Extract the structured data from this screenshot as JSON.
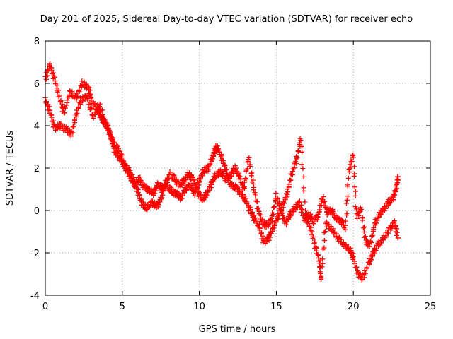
{
  "chart_data": {
    "type": "scatter",
    "title": "Day 201 of 2025, Sidereal Day-to-day VTEC variation (SDTVAR) for receiver echo",
    "xlabel": "GPS time / hours",
    "ylabel": "SDTVAR / TECUs",
    "xlim": [
      0,
      25
    ],
    "ylim": [
      -4,
      8
    ],
    "x_ticks": [
      "0",
      "5",
      "10",
      "15",
      "20",
      "25"
    ],
    "y_ticks": [
      "-4",
      "-2",
      "0",
      "2",
      "4",
      "6",
      "8"
    ],
    "grid": true,
    "marker": "plus",
    "series": [
      {
        "name": "main",
        "color": "#ff0000",
        "points": [
          [
            0.0,
            6.2
          ],
          [
            0.3,
            6.9
          ],
          [
            0.6,
            6.2
          ],
          [
            0.9,
            5.4
          ],
          [
            1.2,
            4.6
          ],
          [
            1.6,
            5.6
          ],
          [
            2.0,
            5.3
          ],
          [
            2.4,
            6.0
          ],
          [
            2.8,
            5.8
          ],
          [
            3.0,
            5.2
          ],
          [
            3.4,
            4.7
          ],
          [
            3.7,
            4.3
          ],
          [
            4.0,
            4.0
          ],
          [
            4.3,
            3.4
          ],
          [
            4.6,
            3.0
          ],
          [
            4.9,
            2.7
          ],
          [
            5.2,
            2.0
          ],
          [
            5.5,
            1.6
          ],
          [
            5.8,
            1.2
          ],
          [
            6.1,
            1.5
          ],
          [
            6.4,
            1.1
          ],
          [
            6.7,
            1.0
          ],
          [
            7.0,
            0.8
          ],
          [
            7.3,
            1.2
          ],
          [
            7.6,
            1.1
          ],
          [
            7.9,
            1.2
          ],
          [
            8.2,
            0.9
          ],
          [
            8.5,
            0.8
          ],
          [
            8.8,
            0.6
          ],
          [
            9.1,
            1.0
          ],
          [
            9.4,
            1.2
          ],
          [
            9.7,
            0.8
          ],
          [
            10.0,
            1.4
          ],
          [
            10.3,
            1.9
          ],
          [
            10.6,
            2.0
          ],
          [
            10.9,
            2.6
          ],
          [
            11.1,
            3.0
          ],
          [
            11.4,
            2.6
          ],
          [
            11.7,
            2.0
          ],
          [
            12.0,
            1.2
          ],
          [
            12.4,
            1.1
          ],
          [
            12.7,
            0.8
          ],
          [
            13.0,
            0.5
          ],
          [
            13.3,
            0.0
          ],
          [
            13.6,
            -0.4
          ],
          [
            13.9,
            -0.8
          ],
          [
            14.2,
            -1.5
          ],
          [
            14.5,
            -1.3
          ],
          [
            14.8,
            -0.8
          ],
          [
            15.1,
            -0.3
          ],
          [
            15.4,
            0.2
          ],
          [
            15.7,
            0.8
          ],
          [
            16.0,
            1.7
          ],
          [
            16.3,
            2.4
          ],
          [
            16.6,
            3.4
          ],
          [
            16.9,
            -0.3
          ],
          [
            17.2,
            -0.8
          ],
          [
            17.5,
            -1.6
          ],
          [
            17.8,
            -2.4
          ],
          [
            17.9,
            -3.3
          ],
          [
            18.2,
            -0.6
          ],
          [
            18.6,
            -0.9
          ],
          [
            19.0,
            -1.3
          ],
          [
            19.4,
            -1.6
          ],
          [
            19.8,
            -1.9
          ],
          [
            20.0,
            -2.2
          ],
          [
            20.3,
            -3.0
          ],
          [
            20.6,
            -3.2
          ],
          [
            21.0,
            -2.5
          ],
          [
            21.3,
            -2.0
          ],
          [
            21.6,
            -1.6
          ],
          [
            22.0,
            -1.3
          ],
          [
            22.4,
            -0.8
          ],
          [
            22.7,
            -0.6
          ],
          [
            22.9,
            -1.3
          ]
        ]
      },
      {
        "name": "secondary",
        "color": "#ff0000",
        "points": [
          [
            0.0,
            5.2
          ],
          [
            0.3,
            4.7
          ],
          [
            0.6,
            3.9
          ],
          [
            1.0,
            4.0
          ],
          [
            1.4,
            3.8
          ],
          [
            1.7,
            3.6
          ],
          [
            2.0,
            4.5
          ],
          [
            2.3,
            5.2
          ],
          [
            2.7,
            5.4
          ],
          [
            3.1,
            4.4
          ],
          [
            3.5,
            5.0
          ],
          [
            3.9,
            4.1
          ],
          [
            4.2,
            3.7
          ],
          [
            4.5,
            2.8
          ],
          [
            4.8,
            2.5
          ],
          [
            5.1,
            2.2
          ],
          [
            5.4,
            1.9
          ],
          [
            5.7,
            1.5
          ],
          [
            6.0,
            0.9
          ],
          [
            6.3,
            0.3
          ],
          [
            6.6,
            0.1
          ],
          [
            6.9,
            0.4
          ],
          [
            7.2,
            0.2
          ],
          [
            7.5,
            0.5
          ],
          [
            7.8,
            1.3
          ],
          [
            8.1,
            1.7
          ],
          [
            8.4,
            1.5
          ],
          [
            8.7,
            1.2
          ],
          [
            9.0,
            1.4
          ],
          [
            9.3,
            1.7
          ],
          [
            9.6,
            1.5
          ],
          [
            9.9,
            0.9
          ],
          [
            10.2,
            0.5
          ],
          [
            10.5,
            0.8
          ],
          [
            10.8,
            1.3
          ],
          [
            11.1,
            1.7
          ],
          [
            11.4,
            1.8
          ],
          [
            11.7,
            1.5
          ],
          [
            12.0,
            1.6
          ],
          [
            12.3,
            2.0
          ],
          [
            12.6,
            1.6
          ],
          [
            12.9,
            1.0
          ],
          [
            13.2,
            2.5
          ],
          [
            13.5,
            1.2
          ],
          [
            13.8,
            0.1
          ],
          [
            14.1,
            -0.6
          ],
          [
            14.4,
            -0.7
          ],
          [
            14.7,
            -0.4
          ],
          [
            15.0,
            0.7
          ],
          [
            15.3,
            0.0
          ],
          [
            15.6,
            -0.6
          ],
          [
            15.9,
            -0.2
          ],
          [
            16.2,
            0.1
          ],
          [
            16.5,
            0.4
          ],
          [
            16.8,
            -0.4
          ],
          [
            17.1,
            -0.2
          ],
          [
            17.4,
            -0.5
          ],
          [
            17.7,
            -0.3
          ],
          [
            18.0,
            0.6
          ],
          [
            18.3,
            -0.1
          ],
          [
            18.6,
            0.0
          ],
          [
            18.9,
            -0.4
          ],
          [
            19.2,
            -0.5
          ],
          [
            19.5,
            -0.8
          ],
          [
            19.7,
            1.8
          ],
          [
            20.0,
            2.7
          ],
          [
            20.2,
            -0.3
          ],
          [
            20.5,
            0.1
          ],
          [
            20.8,
            -1.5
          ],
          [
            21.1,
            -1.6
          ],
          [
            21.4,
            -0.6
          ],
          [
            21.7,
            -0.2
          ],
          [
            22.0,
            0.1
          ],
          [
            22.3,
            0.4
          ],
          [
            22.6,
            0.6
          ],
          [
            22.8,
            1.1
          ],
          [
            22.9,
            1.6
          ]
        ]
      }
    ]
  }
}
